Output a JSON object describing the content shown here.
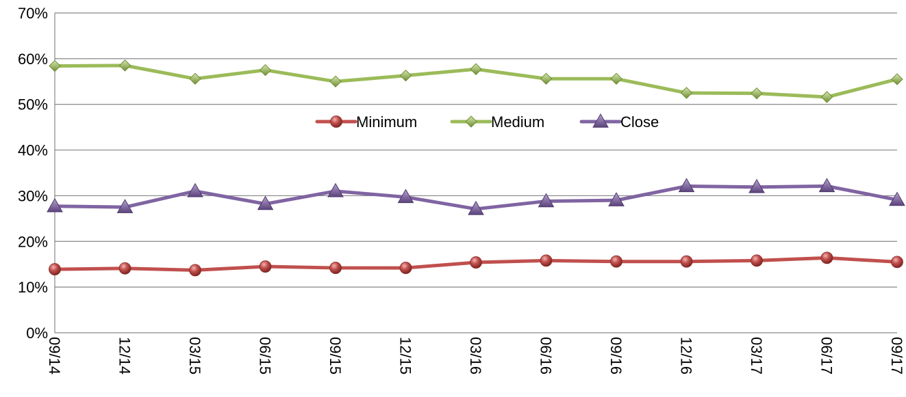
{
  "chart_data": {
    "type": "line",
    "title": "",
    "xlabel": "",
    "ylabel": "",
    "categories": [
      "09/14",
      "12/14",
      "03/15",
      "06/15",
      "09/15",
      "12/15",
      "03/16",
      "06/16",
      "09/16",
      "12/16",
      "03/17",
      "06/17",
      "09/17"
    ],
    "yticks": [
      "0%",
      "10%",
      "20%",
      "30%",
      "40%",
      "50%",
      "60%",
      "70%"
    ],
    "ylim": [
      0,
      70
    ],
    "grid": true,
    "legend_position": "center",
    "series": [
      {
        "name": "Minimum",
        "color": "#c0504d",
        "marker": "circle",
        "values": [
          13.9,
          14.1,
          13.7,
          14.5,
          14.2,
          14.2,
          15.4,
          15.8,
          15.6,
          15.6,
          15.8,
          16.4,
          15.5
        ]
      },
      {
        "name": "Medium",
        "color": "#9bbb59",
        "marker": "diamond",
        "values": [
          58.4,
          58.5,
          55.6,
          57.5,
          55.0,
          56.3,
          57.7,
          55.6,
          55.6,
          52.5,
          52.4,
          51.6,
          55.5
        ]
      },
      {
        "name": "Close",
        "color": "#8064a2",
        "marker": "triangle",
        "values": [
          27.7,
          27.5,
          31.0,
          28.2,
          31.0,
          29.7,
          27.1,
          28.8,
          29.0,
          32.1,
          31.9,
          32.1,
          29.1
        ]
      }
    ]
  }
}
